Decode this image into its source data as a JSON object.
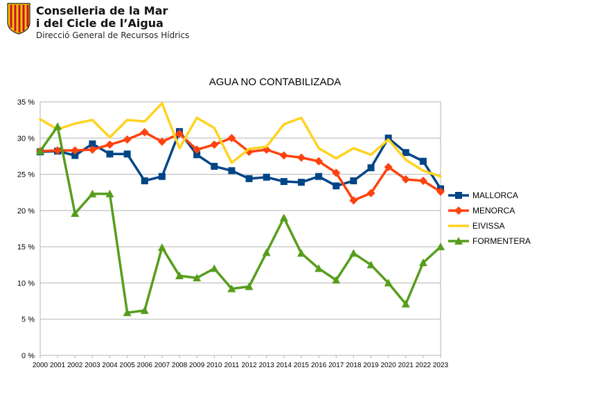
{
  "header": {
    "line1": "Conselleria de la Mar",
    "line2": "i del Cicle de l’Aigua",
    "subtitle": "Direcció General de Recursos Hídrics"
  },
  "chart_data": {
    "type": "line",
    "title": "AGUA NO CONTABILIZADA",
    "xlabel": "",
    "ylabel": "",
    "ylim": [
      0,
      35
    ],
    "yticks": [
      0,
      5,
      10,
      15,
      20,
      25,
      30,
      35
    ],
    "y_tick_suffix": " %",
    "grid": true,
    "legend_position": "right",
    "categories": [
      "2000",
      "2001",
      "2002",
      "2003",
      "2004",
      "2005",
      "2006",
      "2007",
      "2008",
      "2009",
      "2010",
      "2011",
      "2012",
      "2013",
      "2014",
      "2015",
      "2016",
      "2017",
      "2018",
      "2019",
      "2020",
      "2021",
      "2022",
      "2023"
    ],
    "series": [
      {
        "name": "MALLORCA",
        "color": "#004586",
        "marker": "square",
        "values": [
          28.1,
          28.2,
          27.6,
          29.2,
          27.8,
          27.8,
          24.1,
          24.7,
          30.9,
          27.7,
          26.1,
          25.5,
          24.4,
          24.6,
          24.0,
          23.9,
          24.7,
          23.4,
          24.1,
          25.9,
          30.0,
          28.0,
          26.8,
          23.0
        ]
      },
      {
        "name": "MENORCA",
        "color": "#ff420e",
        "marker": "diamond",
        "values": [
          28.2,
          28.3,
          28.3,
          28.4,
          29.1,
          29.8,
          30.8,
          29.5,
          30.6,
          28.4,
          29.1,
          30.0,
          28.1,
          28.4,
          27.6,
          27.3,
          26.8,
          25.2,
          21.4,
          22.4,
          26.0,
          24.3,
          24.1,
          22.6
        ]
      },
      {
        "name": "EIVISSA",
        "color": "#ffd320",
        "marker": "none",
        "values": [
          32.6,
          31.2,
          32.0,
          32.5,
          30.1,
          32.5,
          32.3,
          34.8,
          28.6,
          32.8,
          31.4,
          26.6,
          28.5,
          28.8,
          31.9,
          32.8,
          28.6,
          27.2,
          28.6,
          27.7,
          29.8,
          27.0,
          25.5,
          24.7
        ]
      },
      {
        "name": "FORMENTERA",
        "color": "#579d1c",
        "marker": "triangle",
        "values": [
          28.2,
          31.6,
          19.6,
          22.3,
          22.3,
          5.9,
          6.2,
          14.9,
          11.0,
          10.7,
          12.0,
          9.2,
          9.5,
          14.2,
          19.0,
          14.1,
          12.0,
          10.4,
          14.1,
          12.5,
          10.0,
          7.1,
          12.8,
          15.0
        ]
      }
    ]
  }
}
